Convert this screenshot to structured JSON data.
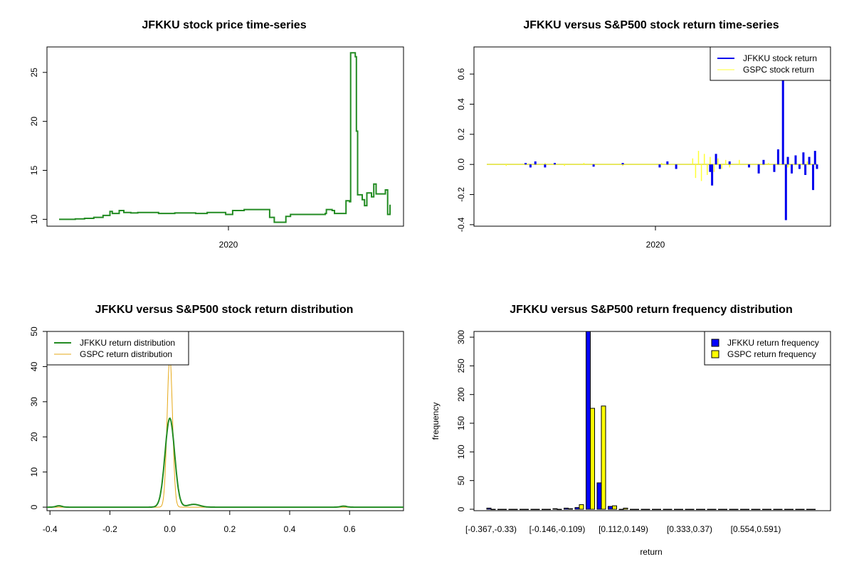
{
  "chart_data": [
    {
      "type": "line",
      "title": "JFKKU stock price time-series",
      "xlabel": "",
      "ylabel": "",
      "x_tick_labels": [
        "2020"
      ],
      "y_ticks": [
        10,
        15,
        20,
        25
      ],
      "ylim": [
        9.3,
        27.6
      ],
      "color": "#228b22",
      "series": [
        {
          "values": [
            {
              "t": 0,
              "y": 10.0
            },
            {
              "t": 14,
              "y": 10.05
            },
            {
              "t": 22,
              "y": 10.1
            },
            {
              "t": 30,
              "y": 10.2
            },
            {
              "t": 38,
              "y": 10.4
            },
            {
              "t": 44,
              "y": 10.8
            },
            {
              "t": 46,
              "y": 10.6
            },
            {
              "t": 52,
              "y": 10.9
            },
            {
              "t": 56,
              "y": 10.7
            },
            {
              "t": 62,
              "y": 10.65
            },
            {
              "t": 68,
              "y": 10.7
            },
            {
              "t": 80,
              "y": 10.7
            },
            {
              "t": 86,
              "y": 10.6
            },
            {
              "t": 100,
              "y": 10.65
            },
            {
              "t": 118,
              "y": 10.6
            },
            {
              "t": 128,
              "y": 10.7
            },
            {
              "t": 144,
              "y": 10.5
            },
            {
              "t": 150,
              "y": 10.9
            },
            {
              "t": 160,
              "y": 11.0
            },
            {
              "t": 178,
              "y": 11.0
            },
            {
              "t": 182,
              "y": 10.2
            },
            {
              "t": 186,
              "y": 9.7
            },
            {
              "t": 195,
              "y": 9.7
            },
            {
              "t": 196,
              "y": 10.3
            },
            {
              "t": 200,
              "y": 10.5
            },
            {
              "t": 230,
              "y": 10.6
            },
            {
              "t": 231,
              "y": 11.0
            },
            {
              "t": 236,
              "y": 10.9
            },
            {
              "t": 238,
              "y": 10.6
            },
            {
              "t": 247,
              "y": 10.6
            },
            {
              "t": 248,
              "y": 11.9
            },
            {
              "t": 251,
              "y": 11.8
            },
            {
              "t": 252,
              "y": 27.0
            },
            {
              "t": 256,
              "y": 26.6
            },
            {
              "t": 257,
              "y": 19.0
            },
            {
              "t": 258,
              "y": 12.5
            },
            {
              "t": 262,
              "y": 12.0
            },
            {
              "t": 264,
              "y": 11.4
            },
            {
              "t": 266,
              "y": 12.7
            },
            {
              "t": 270,
              "y": 12.3
            },
            {
              "t": 272,
              "y": 13.6
            },
            {
              "t": 274,
              "y": 12.6
            },
            {
              "t": 280,
              "y": 12.6
            },
            {
              "t": 282,
              "y": 13.0
            },
            {
              "t": 284,
              "y": 10.5
            },
            {
              "t": 286,
              "y": 11.5
            }
          ]
        }
      ]
    },
    {
      "type": "line",
      "title": "JFKKU versus S&P500 stock return time-series",
      "xlabel": "",
      "ylabel": "",
      "x_tick_labels": [
        "2020"
      ],
      "y_ticks": [
        "-0.4",
        "-0.2",
        "0.0",
        "0.2",
        "0.4",
        "0.6"
      ],
      "ylim": [
        -0.41,
        0.78
      ],
      "legend_position": "top-right",
      "series": [
        {
          "name": "JFKKU stock return",
          "color": "#0000ee",
          "spikes": [
            {
              "t": 40,
              "y": 0.01
            },
            {
              "t": 45,
              "y": -0.02
            },
            {
              "t": 50,
              "y": 0.02
            },
            {
              "t": 60,
              "y": -0.02
            },
            {
              "t": 70,
              "y": 0.01
            },
            {
              "t": 110,
              "y": -0.015
            },
            {
              "t": 140,
              "y": 0.01
            },
            {
              "t": 178,
              "y": -0.02
            },
            {
              "t": 186,
              "y": 0.02
            },
            {
              "t": 195,
              "y": -0.03
            },
            {
              "t": 230,
              "y": -0.05
            },
            {
              "t": 232,
              "y": -0.14
            },
            {
              "t": 236,
              "y": 0.07
            },
            {
              "t": 240,
              "y": -0.03
            },
            {
              "t": 250,
              "y": 0.02
            },
            {
              "t": 270,
              "y": -0.02
            },
            {
              "t": 280,
              "y": -0.06
            },
            {
              "t": 285,
              "y": 0.03
            },
            {
              "t": 296,
              "y": -0.05
            },
            {
              "t": 300,
              "y": 0.1
            },
            {
              "t": 305,
              "y": 0.58
            },
            {
              "t": 308,
              "y": -0.37
            },
            {
              "t": 310,
              "y": 0.05
            },
            {
              "t": 314,
              "y": -0.06
            },
            {
              "t": 318,
              "y": 0.06
            },
            {
              "t": 322,
              "y": -0.03
            },
            {
              "t": 326,
              "y": 0.08
            },
            {
              "t": 328,
              "y": -0.07
            },
            {
              "t": 332,
              "y": 0.05
            },
            {
              "t": 336,
              "y": -0.17
            },
            {
              "t": 338,
              "y": 0.09
            },
            {
              "t": 340,
              "y": -0.03
            }
          ]
        },
        {
          "name": "GSPC stock return",
          "color": "#ffff33",
          "spikes": [
            {
              "t": 20,
              "y": -0.01
            },
            {
              "t": 60,
              "y": 0.01
            },
            {
              "t": 80,
              "y": -0.01
            },
            {
              "t": 100,
              "y": 0.01
            },
            {
              "t": 140,
              "y": -0.01
            },
            {
              "t": 180,
              "y": 0.01
            },
            {
              "t": 212,
              "y": 0.04
            },
            {
              "t": 215,
              "y": -0.09
            },
            {
              "t": 218,
              "y": 0.09
            },
            {
              "t": 221,
              "y": -0.11
            },
            {
              "t": 224,
              "y": 0.07
            },
            {
              "t": 227,
              "y": -0.07
            },
            {
              "t": 230,
              "y": 0.05
            },
            {
              "t": 234,
              "y": -0.05
            },
            {
              "t": 238,
              "y": 0.04
            },
            {
              "t": 242,
              "y": -0.03
            },
            {
              "t": 246,
              "y": 0.03
            },
            {
              "t": 250,
              "y": -0.02
            },
            {
              "t": 260,
              "y": 0.03
            },
            {
              "t": 270,
              "y": -0.02
            },
            {
              "t": 290,
              "y": 0.01
            },
            {
              "t": 310,
              "y": -0.02
            },
            {
              "t": 330,
              "y": 0.02
            }
          ]
        }
      ]
    },
    {
      "type": "line",
      "title": "JFKKU versus S&P500 stock return distribution",
      "xlabel": "",
      "ylabel": "",
      "x_ticks": [
        "-0.4",
        "-0.2",
        "0.0",
        "0.2",
        "0.4",
        "0.6"
      ],
      "y_ticks": [
        0,
        10,
        20,
        30,
        40,
        50
      ],
      "xlim": [
        -0.41,
        0.78
      ],
      "ylim": [
        -1,
        50
      ],
      "legend_position": "top-left",
      "series": [
        {
          "name": "JFKKU return distribution",
          "color": "#228b22",
          "center": 0.0,
          "peak": 25.3,
          "sd": 0.016
        },
        {
          "name": "GSPC return distribution",
          "color": "#e6a817",
          "center": 0.0,
          "peak": 43.0,
          "sd": 0.009
        }
      ]
    },
    {
      "type": "bar",
      "title": "JFKKU versus S&P500 return frequency distribution",
      "xlabel": "return",
      "ylabel": "frequency",
      "y_ticks": [
        0,
        50,
        100,
        150,
        200,
        250,
        300
      ],
      "ylim": [
        0,
        310
      ],
      "legend_position": "top-right",
      "category_labels": [
        "[-0.367,-0.33)",
        "[-0.146,-0.109)",
        "[0.112,0.149)",
        "[0.333,0.37)",
        "[0.554,0.591)"
      ],
      "series": [
        {
          "name": "JFKKU return frequency",
          "color": "#0000ff",
          "values": [
            2,
            0,
            0,
            0,
            0,
            0,
            1,
            2,
            3,
            310,
            46,
            5,
            0,
            0,
            0,
            0,
            0,
            0,
            0,
            0,
            0,
            0,
            0,
            0,
            0,
            0,
            0,
            0,
            0,
            0
          ]
        },
        {
          "name": "GSPC return frequency",
          "color": "#ffff00",
          "values": [
            0,
            0,
            0,
            0,
            0,
            0,
            0,
            1,
            8,
            176,
            180,
            6,
            2,
            0,
            0,
            0,
            0,
            0,
            0,
            0,
            0,
            0,
            0,
            0,
            0,
            0,
            0,
            0,
            0,
            0
          ]
        }
      ]
    }
  ]
}
